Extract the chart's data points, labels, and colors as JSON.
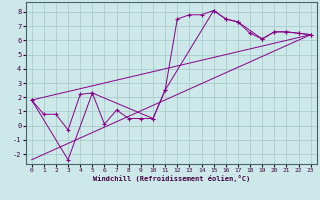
{
  "title": "",
  "xlabel": "Windchill (Refroidissement éolien,°C)",
  "ylabel": "",
  "xlim": [
    -0.5,
    23.5
  ],
  "ylim": [
    -2.7,
    8.7
  ],
  "yticks": [
    -2,
    -1,
    0,
    1,
    2,
    3,
    4,
    5,
    6,
    7,
    8
  ],
  "xticks": [
    0,
    1,
    2,
    3,
    4,
    5,
    6,
    7,
    8,
    9,
    10,
    11,
    12,
    13,
    14,
    15,
    16,
    17,
    18,
    19,
    20,
    21,
    22,
    23
  ],
  "bg_color": "#cce8e8",
  "line_color": "#880088",
  "grid_color": "#aacccc",
  "series1_x": [
    0,
    1,
    2,
    3,
    4,
    5,
    6,
    7,
    8,
    9,
    10,
    11,
    12,
    13,
    14,
    15,
    16,
    17,
    18,
    19,
    20,
    21,
    22,
    23
  ],
  "series1_y": [
    1.8,
    0.8,
    0.8,
    -0.3,
    2.2,
    2.3,
    0.1,
    1.1,
    0.5,
    0.5,
    0.5,
    2.5,
    7.5,
    7.8,
    7.8,
    8.1,
    7.5,
    7.3,
    6.5,
    6.1,
    6.6,
    6.6,
    6.5,
    6.4
  ],
  "series2_x": [
    0,
    3,
    5,
    10,
    11,
    15,
    16,
    17,
    19,
    20,
    21,
    22,
    23
  ],
  "series2_y": [
    1.8,
    -2.4,
    2.3,
    0.5,
    2.5,
    8.1,
    7.5,
    7.3,
    6.1,
    6.6,
    6.6,
    6.5,
    6.4
  ],
  "series3_x": [
    0,
    23
  ],
  "series3_y": [
    -2.4,
    6.4
  ],
  "series4_x": [
    0,
    23
  ],
  "series4_y": [
    1.8,
    6.4
  ]
}
